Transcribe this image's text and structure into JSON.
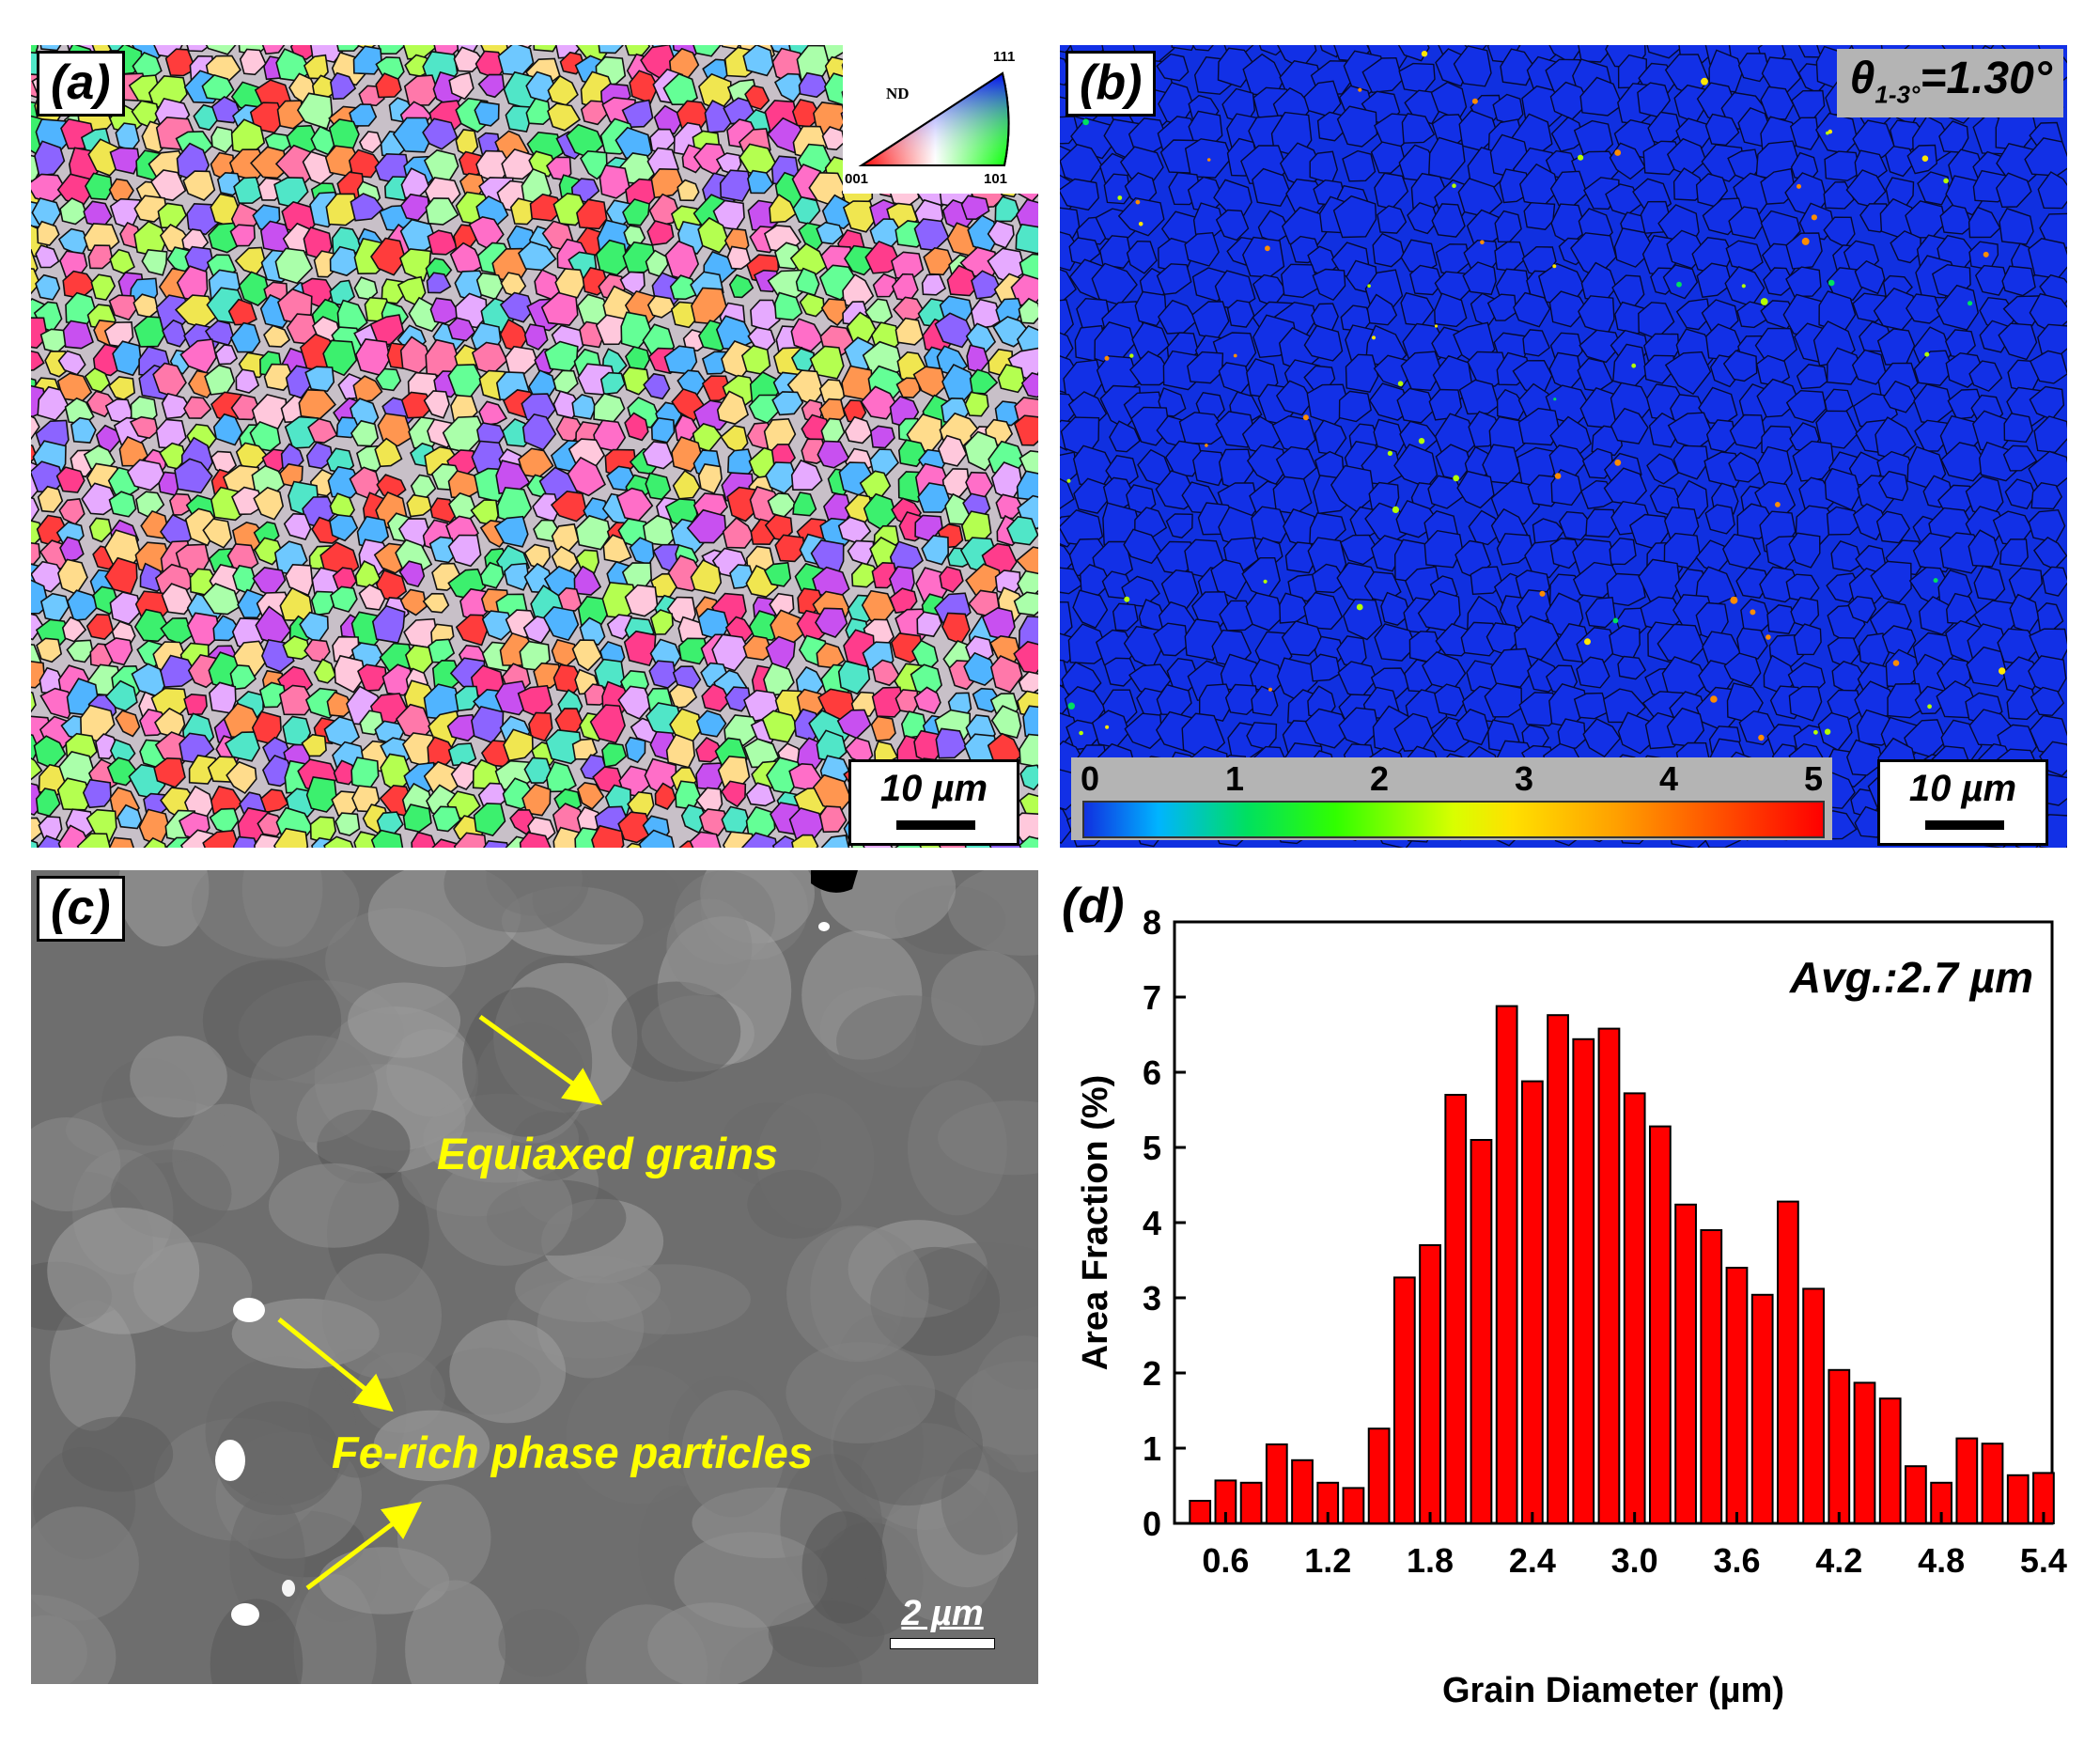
{
  "panel_a": {
    "label": "(a)",
    "scale_bar": "10 µm",
    "ipf_key": {
      "title": "ND",
      "corners": [
        "001",
        "101",
        "111"
      ]
    }
  },
  "panel_b": {
    "label": "(b)",
    "misorientation_prefix": "θ",
    "misorientation_subscript": "1-3°",
    "misorientation_value": "=1.30°",
    "colorbar_ticks": [
      "0",
      "1",
      "2",
      "3",
      "4",
      "5"
    ],
    "scale_bar": "10 µm"
  },
  "panel_c": {
    "label": "(c)",
    "annotation_grains": "Equiaxed grains",
    "annotation_particles": "Fe-rich phase particles",
    "scale_bar": "2 µm"
  },
  "chart_data": {
    "type": "bar",
    "panel_label": "(d)",
    "annotation": "Avg.:2.7 µm",
    "xlabel": "Grain Diameter (µm)",
    "ylabel": "Area Fraction (%)",
    "xlim": [
      0.3,
      5.45
    ],
    "ylim": [
      0,
      8
    ],
    "x_ticks": [
      "0.6",
      "1.2",
      "1.8",
      "2.4",
      "3.0",
      "3.6",
      "4.2",
      "4.8",
      "5.4"
    ],
    "y_ticks": [
      "0",
      "1",
      "2",
      "3",
      "4",
      "5",
      "6",
      "7",
      "8"
    ],
    "bar_color": "#ff0000",
    "bin_centers": [
      0.45,
      0.6,
      0.75,
      0.9,
      1.05,
      1.2,
      1.35,
      1.5,
      1.65,
      1.8,
      1.95,
      2.1,
      2.25,
      2.4,
      2.55,
      2.7,
      2.85,
      3.0,
      3.15,
      3.3,
      3.45,
      3.6,
      3.75,
      3.9,
      4.05,
      4.2,
      4.35,
      4.5,
      4.65,
      4.8,
      4.95,
      5.1,
      5.25,
      5.4
    ],
    "values": [
      0.3,
      0.57,
      0.54,
      1.05,
      0.84,
      0.54,
      0.47,
      1.26,
      3.27,
      3.7,
      5.7,
      5.1,
      6.88,
      5.88,
      6.76,
      6.44,
      6.58,
      5.72,
      5.28,
      4.24,
      3.9,
      3.4,
      3.04,
      4.28,
      3.12,
      2.04,
      1.87,
      1.66,
      0.76,
      0.54,
      1.13,
      1.06,
      0.64,
      0.67
    ]
  }
}
